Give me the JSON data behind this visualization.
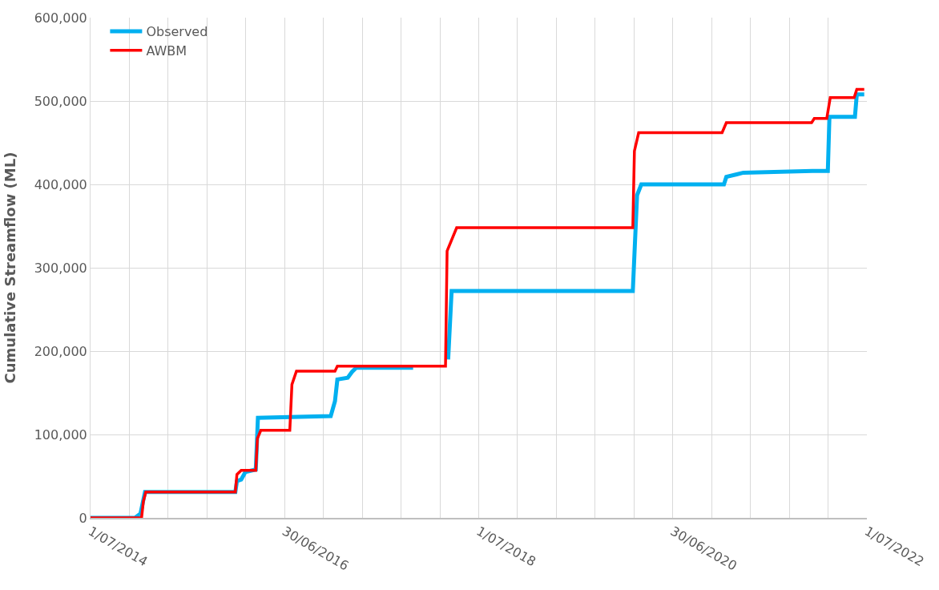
{
  "chart_data": {
    "type": "line",
    "ylabel": "Cumulative Streamflow (ML)",
    "xlim": [
      "2014-07-01",
      "2022-07-01"
    ],
    "xticks": [
      {
        "value": "2014-07-01",
        "label": "1/07/2014"
      },
      {
        "value": "2014-11-24",
        "label": null
      },
      {
        "value": "2015-04-19",
        "label": null
      },
      {
        "value": "2015-09-12",
        "label": null
      },
      {
        "value": "2016-02-05",
        "label": null
      },
      {
        "value": "2016-06-30",
        "label": "30/06/2016"
      },
      {
        "value": "2016-11-23",
        "label": null
      },
      {
        "value": "2017-04-19",
        "label": null
      },
      {
        "value": "2017-09-12",
        "label": null
      },
      {
        "value": "2018-02-05",
        "label": null
      },
      {
        "value": "2018-07-01",
        "label": "1/07/2018"
      },
      {
        "value": "2018-11-24",
        "label": null
      },
      {
        "value": "2019-04-19",
        "label": null
      },
      {
        "value": "2019-09-12",
        "label": null
      },
      {
        "value": "2020-02-05",
        "label": null
      },
      {
        "value": "2020-06-30",
        "label": "30/06/2020"
      },
      {
        "value": "2020-11-23",
        "label": null
      },
      {
        "value": "2021-04-19",
        "label": null
      },
      {
        "value": "2021-09-12",
        "label": null
      },
      {
        "value": "2022-02-05",
        "label": null
      },
      {
        "value": "2022-07-01",
        "label": "1/07/2022"
      }
    ],
    "ylim": [
      0,
      600000
    ],
    "yticks": [
      {
        "value": 0,
        "label": "0"
      },
      {
        "value": 100000,
        "label": "100,000"
      },
      {
        "value": 200000,
        "label": "200,000"
      },
      {
        "value": 300000,
        "label": "300,000"
      },
      {
        "value": 400000,
        "label": "400,000"
      },
      {
        "value": 500000,
        "label": "500,000"
      },
      {
        "value": 600000,
        "label": "600,000"
      }
    ],
    "grid": true,
    "legend": "top left",
    "marker": "none",
    "line_style": "solid",
    "series": [
      {
        "name": "Observed",
        "color": "#00b0f0",
        "x": [
          "2014-07-01",
          "2014-12-15",
          "2015-01-05",
          "2015-01-22",
          "2015-12-28",
          "2016-01-03",
          "2016-01-19",
          "2016-02-04",
          "2016-03-14",
          "2016-03-22",
          "2016-12-21",
          "2017-01-06",
          "2017-01-15",
          "2017-02-23",
          "2017-03-11",
          "2017-03-27",
          "2017-10-27",
          "2017-12-15",
          "2018-03-08",
          "2018-03-21",
          "2020-02-01",
          "2020-02-17",
          "2020-03-04",
          "2021-01-09",
          "2021-01-18",
          "2021-02-26",
          "2021-03-23",
          "2021-12-08",
          "2022-02-04",
          "2022-02-10",
          "2022-05-17",
          "2022-05-24",
          "2022-06-21"
        ],
        "values": [
          0,
          0,
          5000,
          31000,
          31000,
          44000,
          46000,
          55000,
          58000,
          120000,
          122000,
          140000,
          166000,
          168000,
          175000,
          180000,
          180000,
          null,
          190000,
          272000,
          272000,
          387000,
          400000,
          400000,
          409000,
          412000,
          414000,
          416000,
          416000,
          481000,
          481000,
          508000,
          508000
        ]
      },
      {
        "name": "AWBM",
        "color": "#ff0000",
        "x": [
          "2014-07-01",
          "2015-01-09",
          "2015-01-16",
          "2015-01-25",
          "2015-12-28",
          "2016-01-03",
          "2016-01-19",
          "2016-03-14",
          "2016-03-20",
          "2016-04-02",
          "2016-07-20",
          "2016-07-28",
          "2016-08-14",
          "2017-01-06",
          "2017-01-15",
          "2018-02-26",
          "2018-03-04",
          "2018-04-09",
          "2020-02-01",
          "2020-02-07",
          "2020-02-23",
          "2021-01-02",
          "2021-01-18",
          "2021-12-05",
          "2021-12-15",
          "2022-01-31",
          "2022-02-13",
          "2022-05-14",
          "2022-05-24",
          "2022-06-21"
        ],
        "values": [
          0,
          0,
          20000,
          31000,
          31000,
          52000,
          57000,
          57000,
          95000,
          105000,
          105000,
          160000,
          176000,
          176000,
          182000,
          182000,
          320000,
          348000,
          348000,
          440000,
          462000,
          462000,
          474000,
          474000,
          479000,
          479000,
          504000,
          504000,
          514000,
          514000
        ]
      }
    ]
  }
}
